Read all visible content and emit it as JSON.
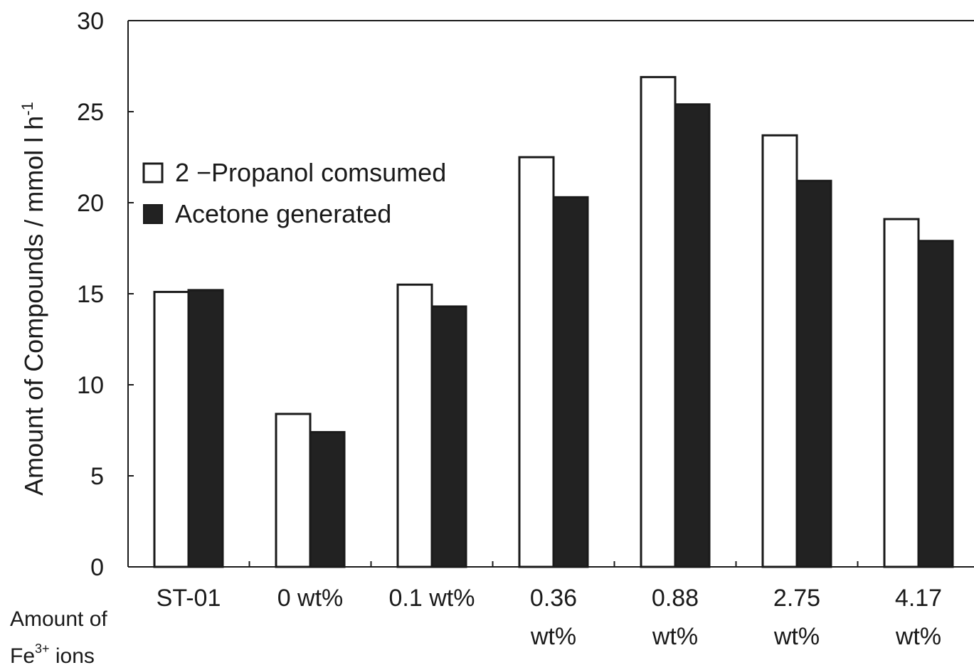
{
  "chart_data": {
    "type": "bar",
    "title": "",
    "ylabel": "Amount of Compounds / mmol",
    "ylabel_unit": "l h",
    "ylabel_exp": "-1",
    "xlabel_caption_line1": "Amount of",
    "xlabel_caption_line2_prefix": "Fe",
    "xlabel_caption_line2_sup": "3+",
    "xlabel_caption_line2_suffix": " ions",
    "ylim": [
      0,
      30
    ],
    "yticks": [
      "0",
      "5",
      "10",
      "15",
      "20",
      "25",
      "30"
    ],
    "categories": [
      [
        "ST-01"
      ],
      [
        "0 wt%"
      ],
      [
        "0.1 wt%"
      ],
      [
        "0.36",
        "wt%"
      ],
      [
        "0.88",
        "wt%"
      ],
      [
        "2.75",
        "wt%"
      ],
      [
        "4.17",
        "wt%"
      ]
    ],
    "series": [
      {
        "name": "2 −Propanol comsumed",
        "fill": "#ffffff",
        "values": [
          15.1,
          8.4,
          15.5,
          22.5,
          26.9,
          23.7,
          19.1
        ]
      },
      {
        "name": "Acetone generated",
        "fill": "#222222",
        "values": [
          15.2,
          7.4,
          14.3,
          20.3,
          25.4,
          21.2,
          17.9
        ]
      }
    ],
    "legend_position": "upper-left",
    "grid": false
  }
}
